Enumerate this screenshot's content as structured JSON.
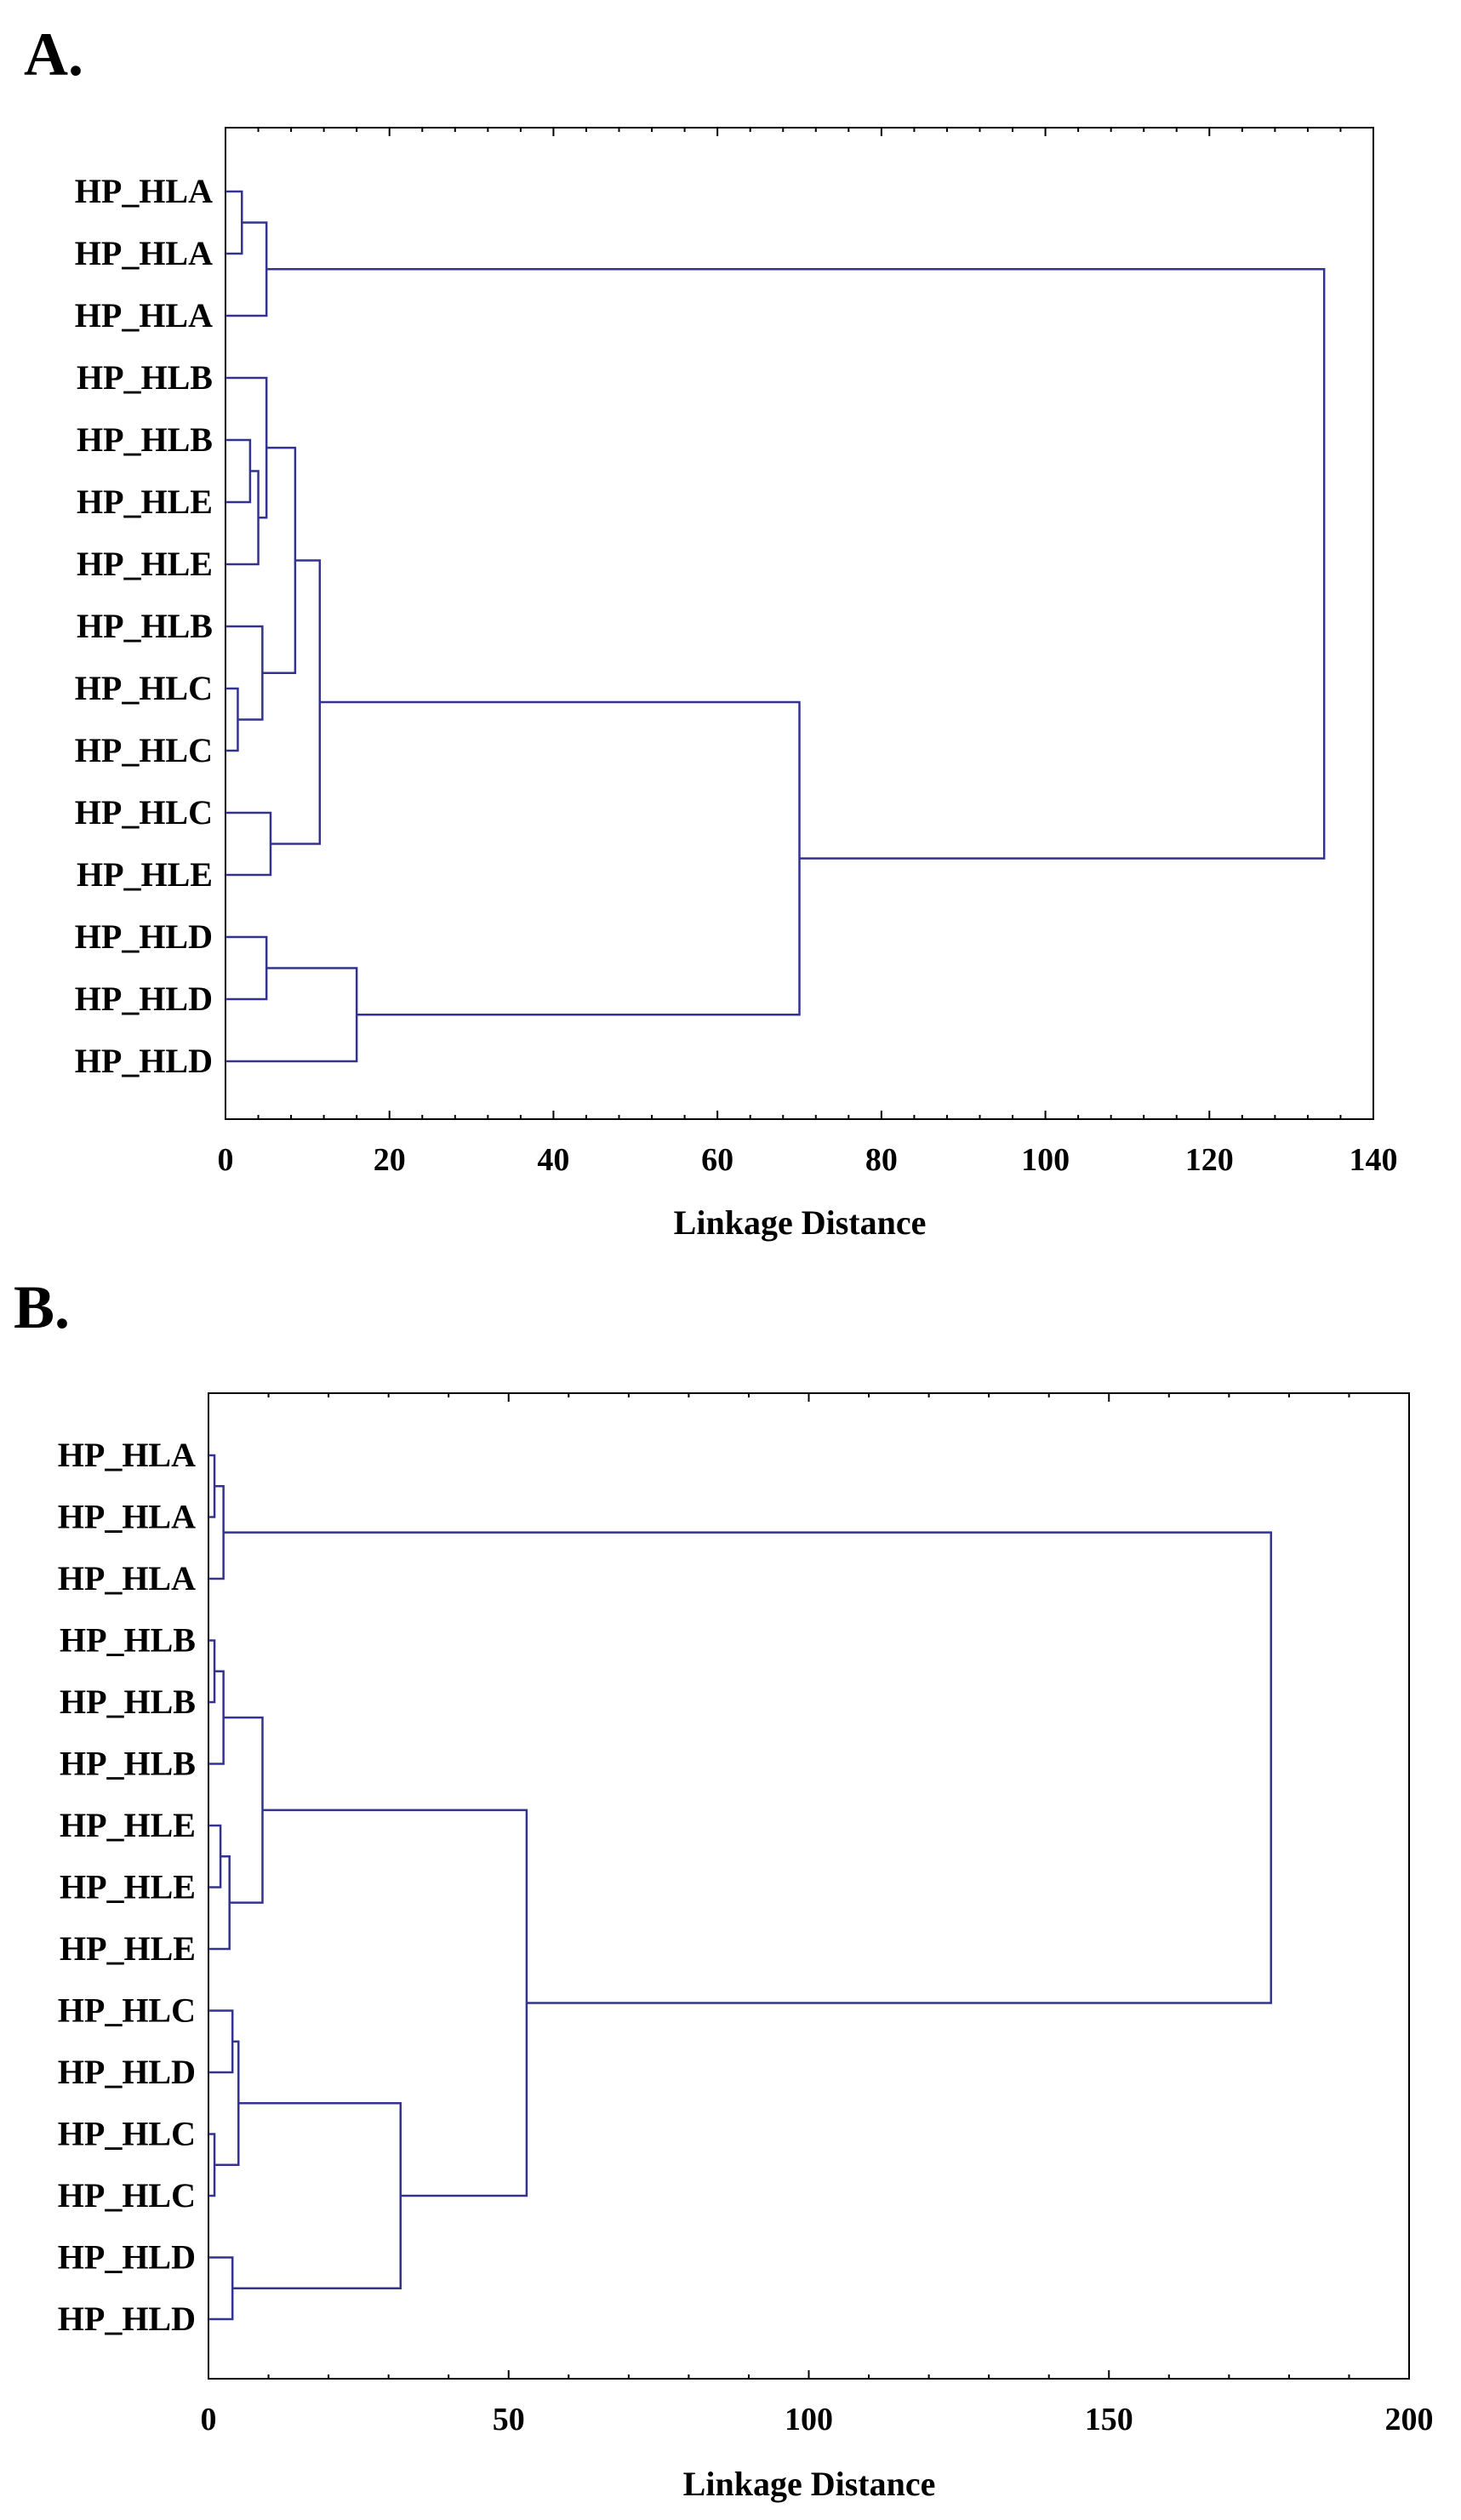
{
  "chart_data": [
    {
      "type": "dendrogram",
      "panel_label": "A.",
      "xlabel": "Linkage Distance",
      "xlim": [
        0,
        140
      ],
      "xticks": [
        0,
        20,
        40,
        60,
        80,
        100,
        120,
        140
      ],
      "minor_ticks_per_major": 5,
      "leaves": [
        "HP_HLA",
        "HP_HLA",
        "HP_HLA",
        "HP_HLB",
        "HP_HLB",
        "HP_HLE",
        "HP_HLE",
        "HP_HLB",
        "HP_HLC",
        "HP_HLC",
        "HP_HLC",
        "HP_HLE",
        "HP_HLD",
        "HP_HLD",
        "HP_HLD"
      ],
      "merges": [
        {
          "id": "a1",
          "children": [
            "L0",
            "L1"
          ],
          "height": 2
        },
        {
          "id": "a2",
          "children": [
            "a1",
            "L2"
          ],
          "height": 5
        },
        {
          "id": "a3",
          "children": [
            "L4",
            "L5"
          ],
          "height": 3
        },
        {
          "id": "a4",
          "children": [
            "a3",
            "L6"
          ],
          "height": 4
        },
        {
          "id": "a5",
          "children": [
            "L3",
            "a4"
          ],
          "height": 5
        },
        {
          "id": "a6",
          "children": [
            "L8",
            "L9"
          ],
          "height": 1.5
        },
        {
          "id": "a7",
          "children": [
            "L7",
            "a6"
          ],
          "height": 4.5
        },
        {
          "id": "a8",
          "children": [
            "a5",
            "a7"
          ],
          "height": 8.5
        },
        {
          "id": "a9",
          "children": [
            "L10",
            "L11"
          ],
          "height": 5.5
        },
        {
          "id": "a10",
          "children": [
            "a8",
            "a9"
          ],
          "height": 11.5
        },
        {
          "id": "a11",
          "children": [
            "L12",
            "L13"
          ],
          "height": 5
        },
        {
          "id": "a12",
          "children": [
            "a11",
            "L14"
          ],
          "height": 16
        },
        {
          "id": "a13",
          "children": [
            "a10",
            "a12"
          ],
          "height": 70
        },
        {
          "id": "a14",
          "children": [
            "a2",
            "a13"
          ],
          "height": 134
        }
      ]
    },
    {
      "type": "dendrogram",
      "panel_label": "B.",
      "xlabel": "Linkage Distance",
      "xlim": [
        0,
        200
      ],
      "xticks": [
        0,
        50,
        100,
        150,
        200
      ],
      "minor_ticks_per_major": 5,
      "leaves": [
        "HP_HLA",
        "HP_HLA",
        "HP_HLA",
        "HP_HLB",
        "HP_HLB",
        "HP_HLB",
        "HP_HLE",
        "HP_HLE",
        "HP_HLE",
        "HP_HLC",
        "HP_HLD",
        "HP_HLC",
        "HP_HLC",
        "HP_HLD",
        "HP_HLD"
      ],
      "merges": [
        {
          "id": "b1",
          "children": [
            "L0",
            "L1"
          ],
          "height": 1
        },
        {
          "id": "b2",
          "children": [
            "b1",
            "L2"
          ],
          "height": 2.5
        },
        {
          "id": "b3",
          "children": [
            "L3",
            "L4"
          ],
          "height": 1
        },
        {
          "id": "b4",
          "children": [
            "b3",
            "L5"
          ],
          "height": 2.5
        },
        {
          "id": "b5",
          "children": [
            "L6",
            "L7"
          ],
          "height": 2
        },
        {
          "id": "b6",
          "children": [
            "b5",
            "L8"
          ],
          "height": 3.5
        },
        {
          "id": "b7",
          "children": [
            "b4",
            "b6"
          ],
          "height": 9
        },
        {
          "id": "b8",
          "children": [
            "L9",
            "L10"
          ],
          "height": 4
        },
        {
          "id": "b9",
          "children": [
            "L11",
            "L12"
          ],
          "height": 1
        },
        {
          "id": "b10",
          "children": [
            "b8",
            "b9"
          ],
          "height": 5
        },
        {
          "id": "b11",
          "children": [
            "L13",
            "L14"
          ],
          "height": 4
        },
        {
          "id": "b12",
          "children": [
            "b10",
            "b11"
          ],
          "height": 32
        },
        {
          "id": "b13",
          "children": [
            "b7",
            "b12"
          ],
          "height": 53
        },
        {
          "id": "b14",
          "children": [
            "b2",
            "b13"
          ],
          "height": 177
        }
      ]
    }
  ]
}
